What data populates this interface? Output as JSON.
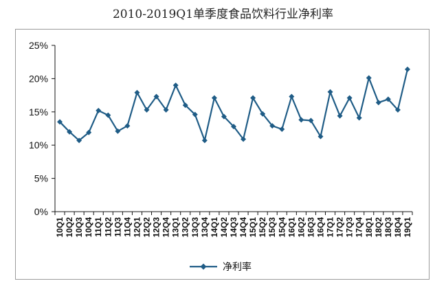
{
  "chart_data": {
    "type": "line",
    "title": "2010-2019Q1单季度食品饮料行业净利率",
    "xlabel": "",
    "ylabel": "",
    "ylim": [
      0,
      25
    ],
    "yticks": [
      "0%",
      "5%",
      "10%",
      "15%",
      "20%",
      "25%"
    ],
    "grid": false,
    "legend_position": "bottom",
    "color": "#1f5c86",
    "categories": [
      "10Q1",
      "10Q2",
      "10Q3",
      "10Q4",
      "11Q1",
      "11Q2",
      "11Q3",
      "11Q4",
      "12Q1",
      "12Q2",
      "12Q3",
      "12Q4",
      "13Q1",
      "13Q2",
      "13Q3",
      "13Q4",
      "14Q1",
      "14Q2",
      "14Q3",
      "14Q4",
      "15Q1",
      "15Q2",
      "15Q3",
      "15Q4",
      "16Q1",
      "16Q2",
      "16Q3",
      "16Q4",
      "17Q1",
      "17Q2",
      "17Q3",
      "17Q4",
      "18Q1",
      "18Q2",
      "18Q3",
      "18Q4",
      "19Q1"
    ],
    "series": [
      {
        "name": "净利率",
        "values": [
          13.5,
          12.0,
          10.7,
          11.9,
          15.2,
          14.5,
          12.1,
          12.9,
          17.9,
          15.3,
          17.3,
          15.3,
          19.0,
          16.0,
          14.6,
          10.7,
          17.1,
          14.3,
          12.8,
          10.9,
          17.1,
          14.7,
          12.9,
          12.4,
          17.3,
          13.8,
          13.7,
          11.3,
          18.0,
          14.4,
          17.1,
          14.1,
          20.1,
          16.4,
          16.9,
          15.3,
          21.4
        ]
      }
    ]
  }
}
